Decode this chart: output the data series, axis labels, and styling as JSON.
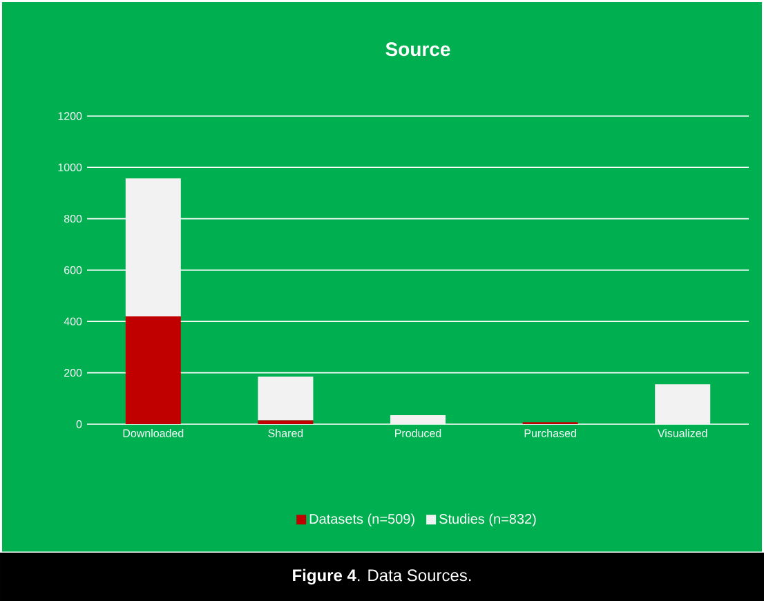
{
  "chart_data": {
    "type": "bar",
    "title": "Source",
    "stacked": true,
    "grid": "y",
    "legend": "bottom",
    "categories": [
      "Downloaded",
      "Shared",
      "Produced",
      "Purchased",
      "Visualized"
    ],
    "series": [
      {
        "name": "Datasets (n=509)",
        "color": "#c00000",
        "values": [
          420,
          15,
          0,
          7,
          0
        ]
      },
      {
        "name": "Studies (n=832)",
        "color": "#f2f2f2",
        "values": [
          537,
          170,
          35,
          0,
          155
        ]
      }
    ],
    "ylim": [
      0,
      1200
    ],
    "yticks": [
      0,
      200,
      400,
      600,
      800,
      1000,
      1200
    ],
    "annotations": [
      "**Figure 4**. Data Sources."
    ]
  }
}
